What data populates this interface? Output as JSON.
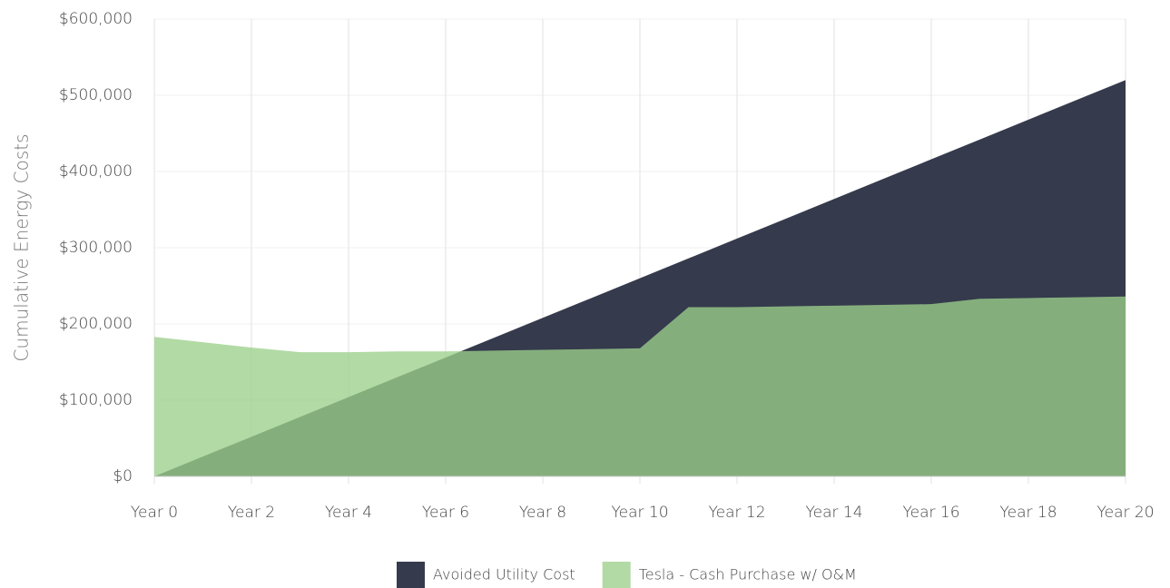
{
  "chart_data": {
    "type": "area",
    "y_label": "Cumulative Energy Costs",
    "categories": [
      "Year 0",
      null,
      "Year 2",
      null,
      "Year 4",
      null,
      "Year 6",
      null,
      "Year 8",
      null,
      "Year 10",
      null,
      "Year 12",
      null,
      "Year 14",
      null,
      "Year 16",
      null,
      "Year 18",
      null,
      "Year 20"
    ],
    "series": [
      {
        "name": "Avoided Utility Cost",
        "color": "#353a4c",
        "values": [
          0,
          26000,
          52000,
          78000,
          104000,
          130000,
          156000,
          182000,
          208000,
          234000,
          260000,
          286000,
          312000,
          338000,
          364000,
          390000,
          416000,
          442000,
          468000,
          494000,
          520000
        ]
      },
      {
        "name": "Tesla - Cash Purchase w/ O&M",
        "color": "#9ccf8c",
        "values": [
          183000,
          176000,
          169000,
          163000,
          163000,
          164000,
          164000,
          165000,
          166000,
          167000,
          168000,
          222000,
          222000,
          223000,
          224000,
          225000,
          226000,
          233000,
          234000,
          235000,
          236000
        ]
      }
    ],
    "ylim": [
      0,
      600000
    ],
    "yticks": [
      {
        "value": 0,
        "label": "$0"
      },
      {
        "value": 100000,
        "label": "$100,000"
      },
      {
        "value": 200000,
        "label": "$200,000"
      },
      {
        "value": 300000,
        "label": "$300,000"
      },
      {
        "value": 400000,
        "label": "$400,000"
      },
      {
        "value": 500000,
        "label": "$500,000"
      },
      {
        "value": 600000,
        "label": "$600,000"
      }
    ],
    "grid": true
  }
}
